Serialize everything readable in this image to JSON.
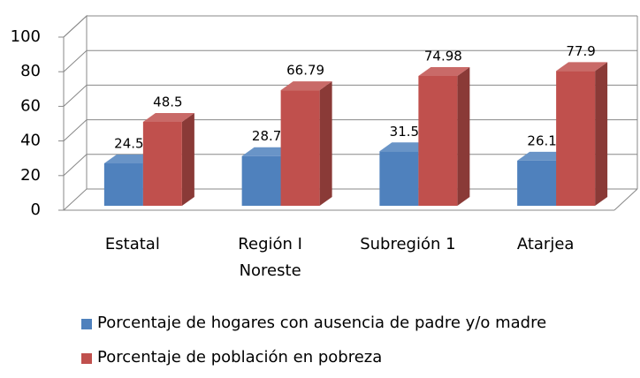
{
  "chart_data": {
    "type": "bar3d",
    "categories": [
      "Estatal",
      "Región I Noreste",
      "Subregión 1",
      "Atarjea"
    ],
    "series": [
      {
        "name": "Porcentaje de hogares con ausencia de padre y/o madre",
        "color": "#4f81bd",
        "values": [
          24.5,
          28.7,
          31.5,
          26.1
        ]
      },
      {
        "name": "Porcentaje de población en pobreza",
        "color": "#c0504d",
        "values": [
          48.5,
          66.79,
          74.98,
          77.9
        ]
      }
    ],
    "ylim": [
      0,
      100
    ],
    "yticks": [
      0,
      20,
      40,
      60,
      80,
      100
    ],
    "grid": true,
    "legend": "bottom"
  }
}
